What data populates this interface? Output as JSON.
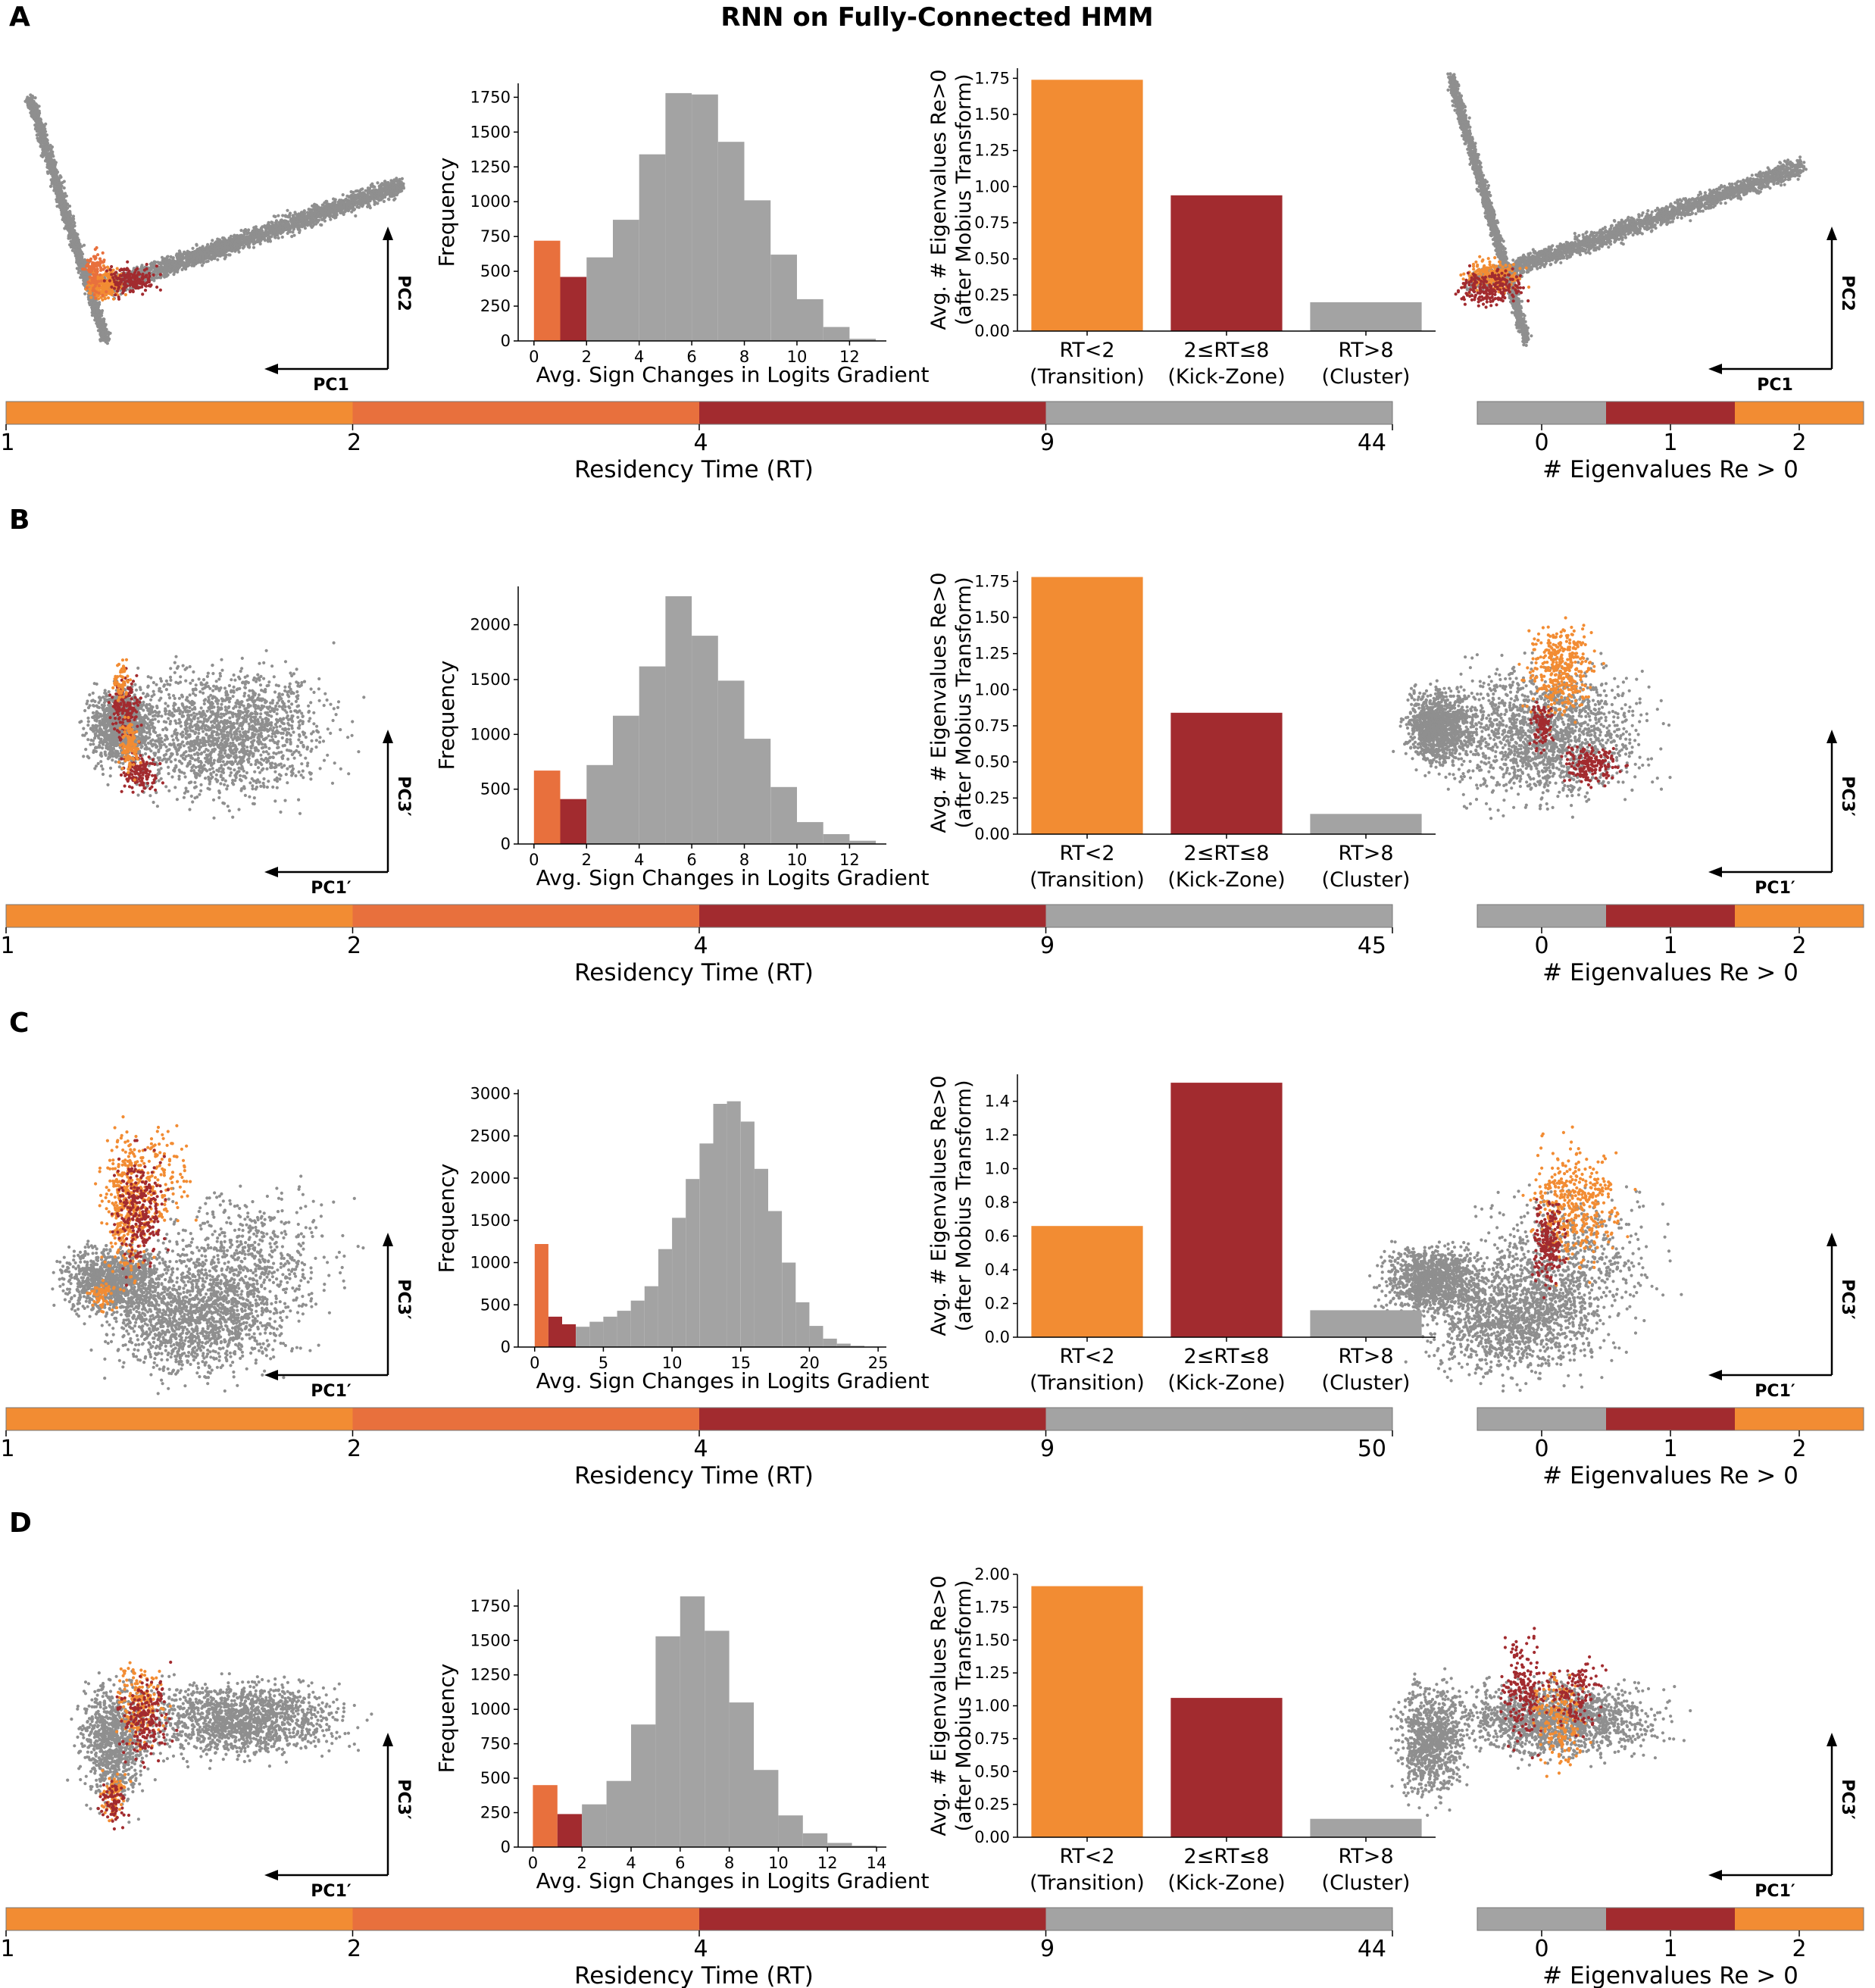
{
  "figure": {
    "title": "RNN on Fully-Connected HMM"
  },
  "colors": {
    "rt_lt2": "#f28c33",
    "rt_2to4": "#e8703d",
    "rt_4to9": "#a22b2f",
    "rt_gt9": "#a3a3a3",
    "scatter_gray": "#8f8f8f"
  },
  "chart_data": [
    {
      "row": "A",
      "pc_labels": {
        "x": "PC1",
        "y": "PC2"
      },
      "histogram": {
        "type": "bar",
        "xlabel": "Avg. Sign Changes in Logits Gradient",
        "ylabel": "Frequency",
        "xlim": [
          -0.6,
          13.4
        ],
        "ylim": [
          0,
          1850
        ],
        "xticks": [
          0,
          2,
          4,
          6,
          8,
          10,
          12
        ],
        "yticks": [
          0,
          250,
          500,
          750,
          1000,
          1250,
          1500,
          1750
        ],
        "bin_width": 1,
        "bins": [
          {
            "x": 0,
            "value": 720,
            "group": "rt_2to4"
          },
          {
            "x": 1,
            "value": 460,
            "group": "rt_4to9"
          },
          {
            "x": 2,
            "value": 600,
            "group": "rt_gt9"
          },
          {
            "x": 3,
            "value": 870,
            "group": "rt_gt9"
          },
          {
            "x": 4,
            "value": 1340,
            "group": "rt_gt9"
          },
          {
            "x": 5,
            "value": 1780,
            "group": "rt_gt9"
          },
          {
            "x": 6,
            "value": 1770,
            "group": "rt_gt9"
          },
          {
            "x": 7,
            "value": 1430,
            "group": "rt_gt9"
          },
          {
            "x": 8,
            "value": 1010,
            "group": "rt_gt9"
          },
          {
            "x": 9,
            "value": 620,
            "group": "rt_gt9"
          },
          {
            "x": 10,
            "value": 300,
            "group": "rt_gt9"
          },
          {
            "x": 11,
            "value": 100,
            "group": "rt_gt9"
          },
          {
            "x": 12,
            "value": 15,
            "group": "rt_gt9"
          }
        ]
      },
      "eigen_bar": {
        "type": "bar",
        "ylabel_lines": [
          "Avg. # Eigenvalues Re>0",
          "(after Mobius Transform)"
        ],
        "ylim": [
          0,
          1.82
        ],
        "yticks": [
          "0.00",
          "0.25",
          "0.50",
          "0.75",
          "1.00",
          "1.25",
          "1.50",
          "1.75"
        ],
        "categories": [
          {
            "line1": "RT<2",
            "line2": "(Transition)",
            "value": 1.74,
            "group": "rt_lt2"
          },
          {
            "line1": "2≤RT≤8",
            "line2": "(Kick-Zone)",
            "value": 0.94,
            "group": "rt_4to9"
          },
          {
            "line1": "RT>8",
            "line2": "(Cluster)",
            "value": 0.2,
            "group": "rt_gt9"
          }
        ]
      },
      "rt_colorbar": {
        "label": "Residency Time (RT)",
        "ticks": [
          "1",
          "2",
          "4",
          "9",
          "44"
        ]
      },
      "eig_colorbar": {
        "label": "# Eigenvalues Re > 0",
        "ticks": [
          "0",
          "1",
          "2"
        ]
      }
    },
    {
      "row": "B",
      "pc_labels": {
        "x": "PC1′",
        "y": "PC3′"
      },
      "histogram": {
        "type": "bar",
        "xlabel": "Avg. Sign Changes in Logits Gradient",
        "ylabel": "Frequency",
        "xlim": [
          -0.6,
          13.4
        ],
        "ylim": [
          0,
          2350
        ],
        "xticks": [
          0,
          2,
          4,
          6,
          8,
          10,
          12
        ],
        "yticks": [
          0,
          500,
          1000,
          1500,
          2000
        ],
        "bin_width": 1,
        "bins": [
          {
            "x": 0,
            "value": 670,
            "group": "rt_2to4"
          },
          {
            "x": 1,
            "value": 410,
            "group": "rt_4to9"
          },
          {
            "x": 2,
            "value": 720,
            "group": "rt_gt9"
          },
          {
            "x": 3,
            "value": 1170,
            "group": "rt_gt9"
          },
          {
            "x": 4,
            "value": 1620,
            "group": "rt_gt9"
          },
          {
            "x": 5,
            "value": 2260,
            "group": "rt_gt9"
          },
          {
            "x": 6,
            "value": 1900,
            "group": "rt_gt9"
          },
          {
            "x": 7,
            "value": 1490,
            "group": "rt_gt9"
          },
          {
            "x": 8,
            "value": 960,
            "group": "rt_gt9"
          },
          {
            "x": 9,
            "value": 520,
            "group": "rt_gt9"
          },
          {
            "x": 10,
            "value": 200,
            "group": "rt_gt9"
          },
          {
            "x": 11,
            "value": 90,
            "group": "rt_gt9"
          },
          {
            "x": 12,
            "value": 30,
            "group": "rt_gt9"
          }
        ]
      },
      "eigen_bar": {
        "type": "bar",
        "ylabel_lines": [
          "Avg. # Eigenvalues Re>0",
          "(after Mobius Transform)"
        ],
        "ylim": [
          0,
          1.82
        ],
        "yticks": [
          "0.00",
          "0.25",
          "0.50",
          "0.75",
          "1.00",
          "1.25",
          "1.50",
          "1.75"
        ],
        "categories": [
          {
            "line1": "RT<2",
            "line2": "(Transition)",
            "value": 1.78,
            "group": "rt_lt2"
          },
          {
            "line1": "2≤RT≤8",
            "line2": "(Kick-Zone)",
            "value": 0.84,
            "group": "rt_4to9"
          },
          {
            "line1": "RT>8",
            "line2": "(Cluster)",
            "value": 0.14,
            "group": "rt_gt9"
          }
        ]
      },
      "rt_colorbar": {
        "label": "Residency Time (RT)",
        "ticks": [
          "1",
          "2",
          "4",
          "9",
          "45"
        ]
      },
      "eig_colorbar": {
        "label": "# Eigenvalues Re > 0",
        "ticks": [
          "0",
          "1",
          "2"
        ]
      }
    },
    {
      "row": "C",
      "pc_labels": {
        "x": "PC1′",
        "y": "PC3′"
      },
      "histogram": {
        "type": "bar",
        "xlabel": "Avg. Sign Changes in Logits Gradient",
        "ylabel": "Frequency",
        "xlim": [
          -1.2,
          25.6
        ],
        "ylim": [
          0,
          3050
        ],
        "xticks": [
          0,
          5,
          10,
          15,
          20,
          25
        ],
        "yticks": [
          0,
          500,
          1000,
          1500,
          2000,
          2500,
          3000
        ],
        "bin_width": 1,
        "bins": [
          {
            "x": 0,
            "value": 1220,
            "group": "rt_2to4"
          },
          {
            "x": 1,
            "value": 360,
            "group": "rt_4to9"
          },
          {
            "x": 2,
            "value": 270,
            "group": "rt_4to9"
          },
          {
            "x": 3,
            "value": 240,
            "group": "rt_gt9"
          },
          {
            "x": 4,
            "value": 300,
            "group": "rt_gt9"
          },
          {
            "x": 5,
            "value": 360,
            "group": "rt_gt9"
          },
          {
            "x": 6,
            "value": 430,
            "group": "rt_gt9"
          },
          {
            "x": 7,
            "value": 550,
            "group": "rt_gt9"
          },
          {
            "x": 8,
            "value": 720,
            "group": "rt_gt9"
          },
          {
            "x": 9,
            "value": 1160,
            "group": "rt_gt9"
          },
          {
            "x": 10,
            "value": 1530,
            "group": "rt_gt9"
          },
          {
            "x": 11,
            "value": 1990,
            "group": "rt_gt9"
          },
          {
            "x": 12,
            "value": 2410,
            "group": "rt_gt9"
          },
          {
            "x": 13,
            "value": 2880,
            "group": "rt_gt9"
          },
          {
            "x": 14,
            "value": 2910,
            "group": "rt_gt9"
          },
          {
            "x": 15,
            "value": 2670,
            "group": "rt_gt9"
          },
          {
            "x": 16,
            "value": 2110,
            "group": "rt_gt9"
          },
          {
            "x": 17,
            "value": 1610,
            "group": "rt_gt9"
          },
          {
            "x": 18,
            "value": 1000,
            "group": "rt_gt9"
          },
          {
            "x": 19,
            "value": 530,
            "group": "rt_gt9"
          },
          {
            "x": 20,
            "value": 250,
            "group": "rt_gt9"
          },
          {
            "x": 21,
            "value": 100,
            "group": "rt_gt9"
          },
          {
            "x": 22,
            "value": 40,
            "group": "rt_gt9"
          },
          {
            "x": 23,
            "value": 15,
            "group": "rt_gt9"
          }
        ]
      },
      "eigen_bar": {
        "type": "bar",
        "ylabel_lines": [
          "Avg. # Eigenvalues Re>0",
          "(after Mobius Transform)"
        ],
        "ylim": [
          0,
          1.56
        ],
        "yticks": [
          "0.0",
          "0.2",
          "0.4",
          "0.6",
          "0.8",
          "1.0",
          "1.2",
          "1.4"
        ],
        "categories": [
          {
            "line1": "RT<2",
            "line2": "(Transition)",
            "value": 0.66,
            "group": "rt_lt2"
          },
          {
            "line1": "2≤RT≤8",
            "line2": "(Kick-Zone)",
            "value": 1.51,
            "group": "rt_4to9"
          },
          {
            "line1": "RT>8",
            "line2": "(Cluster)",
            "value": 0.16,
            "group": "rt_gt9"
          }
        ]
      },
      "rt_colorbar": {
        "label": "Residency Time (RT)",
        "ticks": [
          "1",
          "2",
          "4",
          "9",
          "50"
        ]
      },
      "eig_colorbar": {
        "label": "# Eigenvalues Re > 0",
        "ticks": [
          "0",
          "1",
          "2"
        ]
      }
    },
    {
      "row": "D",
      "pc_labels": {
        "x": "PC1′",
        "y": "PC3′"
      },
      "histogram": {
        "type": "bar",
        "xlabel": "Avg. Sign Changes in Logits Gradient",
        "ylabel": "Frequency",
        "xlim": [
          -0.6,
          14.4
        ],
        "ylim": [
          0,
          1870
        ],
        "xticks": [
          0,
          2,
          4,
          6,
          8,
          10,
          12,
          14
        ],
        "yticks": [
          0,
          250,
          500,
          750,
          1000,
          1250,
          1500,
          1750
        ],
        "bin_width": 1,
        "bins": [
          {
            "x": 0,
            "value": 450,
            "group": "rt_2to4"
          },
          {
            "x": 1,
            "value": 240,
            "group": "rt_4to9"
          },
          {
            "x": 2,
            "value": 310,
            "group": "rt_gt9"
          },
          {
            "x": 3,
            "value": 480,
            "group": "rt_gt9"
          },
          {
            "x": 4,
            "value": 890,
            "group": "rt_gt9"
          },
          {
            "x": 5,
            "value": 1530,
            "group": "rt_gt9"
          },
          {
            "x": 6,
            "value": 1820,
            "group": "rt_gt9"
          },
          {
            "x": 7,
            "value": 1570,
            "group": "rt_gt9"
          },
          {
            "x": 8,
            "value": 1050,
            "group": "rt_gt9"
          },
          {
            "x": 9,
            "value": 560,
            "group": "rt_gt9"
          },
          {
            "x": 10,
            "value": 230,
            "group": "rt_gt9"
          },
          {
            "x": 11,
            "value": 100,
            "group": "rt_gt9"
          },
          {
            "x": 12,
            "value": 30,
            "group": "rt_gt9"
          },
          {
            "x": 13,
            "value": 10,
            "group": "rt_gt9"
          }
        ]
      },
      "eigen_bar": {
        "type": "bar",
        "ylabel_lines": [
          "Avg. # Eigenvalues Re>0",
          "(after Mobius Transform)"
        ],
        "ylim": [
          0,
          2.0
        ],
        "yticks": [
          "0.00",
          "0.25",
          "0.50",
          "0.75",
          "1.00",
          "1.25",
          "1.50",
          "1.75",
          "2.00"
        ],
        "categories": [
          {
            "line1": "RT<2",
            "line2": "(Transition)",
            "value": 1.91,
            "group": "rt_lt2"
          },
          {
            "line1": "2≤RT≤8",
            "line2": "(Kick-Zone)",
            "value": 1.06,
            "group": "rt_4to9"
          },
          {
            "line1": "RT>8",
            "line2": "(Cluster)",
            "value": 0.14,
            "group": "rt_gt9"
          }
        ]
      },
      "rt_colorbar": {
        "label": "Residency Time (RT)",
        "ticks": [
          "1",
          "2",
          "4",
          "9",
          "44"
        ]
      },
      "eig_colorbar": {
        "label": "# Eigenvalues Re > 0",
        "ticks": [
          "0",
          "1",
          "2"
        ]
      }
    }
  ]
}
